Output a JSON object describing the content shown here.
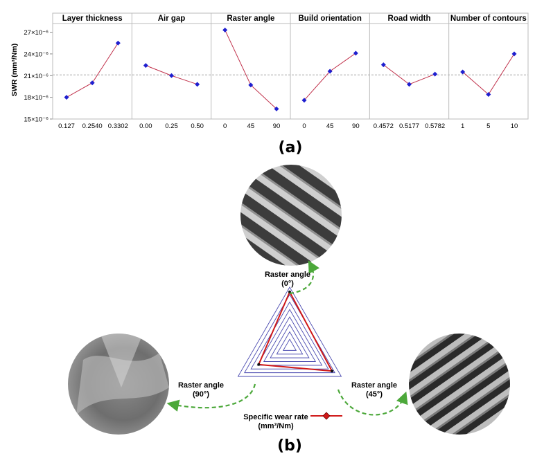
{
  "chart_data": [
    {
      "type": "line",
      "panel_label": "(a)",
      "ylabel": "SWR (mm³/Nm)",
      "y_ticks": [
        "15×10⁻⁶",
        "18×10⁻⁶",
        "21×10⁻⁶",
        "24×10⁻⁶",
        "27×10⁻⁶"
      ],
      "ylim": [
        15,
        28.2
      ],
      "y_unit": "×10⁻⁶ mm³/Nm",
      "reference_line": 21.1,
      "grid": false,
      "colors": {
        "line": "#c0304a",
        "marker": "#1f1fcf",
        "reference": "#999999"
      },
      "panels": [
        {
          "title": "Layer thickness",
          "categories": [
            "0.127",
            "0.2540",
            "0.3302"
          ],
          "values": [
            18.0,
            20.0,
            25.5
          ]
        },
        {
          "title": "Air gap",
          "categories": [
            "0.00",
            "0.25",
            "0.50"
          ],
          "values": [
            22.4,
            21.0,
            19.8
          ]
        },
        {
          "title": "Raster angle",
          "categories": [
            "0",
            "45",
            "90"
          ],
          "values": [
            27.3,
            19.7,
            16.4
          ]
        },
        {
          "title": "Build orientation",
          "categories": [
            "0",
            "45",
            "90"
          ],
          "values": [
            17.6,
            21.6,
            24.1
          ]
        },
        {
          "title": "Road width",
          "categories": [
            "0.4572",
            "0.5177",
            "0.5782"
          ],
          "values": [
            22.5,
            19.8,
            21.2
          ]
        },
        {
          "title": "Number of contours",
          "categories": [
            "1",
            "5",
            "10"
          ],
          "values": [
            21.5,
            18.4,
            24.0
          ]
        }
      ]
    },
    {
      "type": "radar",
      "panel_label": "(b)",
      "axes": [
        {
          "label": "Raster angle",
          "sub": "(0°)"
        },
        {
          "label": "Raster angle",
          "sub": "(45°)"
        },
        {
          "label": "Raster angle",
          "sub": "(90°)"
        }
      ],
      "series": [
        {
          "name": "Specific wear rate",
          "unit": "(mm³/Nm)",
          "values": [
            0.92,
            0.82,
            0.6
          ]
        }
      ],
      "rings": 8,
      "colors": {
        "series": "#d01818",
        "rings": "#4a4ab0",
        "arrow": "#4ca83a"
      }
    }
  ]
}
